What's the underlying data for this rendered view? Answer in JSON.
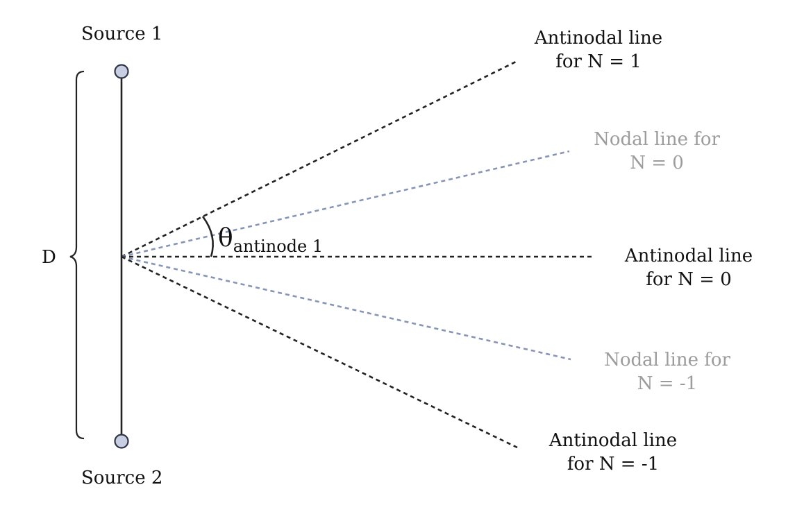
{
  "sources": {
    "source1_label": "Source 1",
    "source2_label": "Source 2",
    "source_fill": "#c9cfe2",
    "source_stroke": "#2f3447"
  },
  "separation": {
    "label": "D"
  },
  "angle": {
    "symbol": "θ",
    "subscript": "antinode 1"
  },
  "lines": {
    "antinodal_n1": {
      "line1": "Antinodal line",
      "line2": "for N = 1"
    },
    "nodal_n0": {
      "line1": "Nodal line for",
      "line2": "N = 0"
    },
    "antinodal_n0": {
      "line1": "Antinodal line",
      "line2": "for N = 0"
    },
    "nodal_nm1": {
      "line1": "Nodal line for",
      "line2": "N = -1"
    },
    "antinodal_nm1": {
      "line1": "Antinodal line",
      "line2": "for N = -1"
    }
  },
  "colors": {
    "antinodal_line": "#222222",
    "nodal_line": "#8795b5",
    "nodal_text": "#9c9c9c",
    "text": "#111111"
  }
}
